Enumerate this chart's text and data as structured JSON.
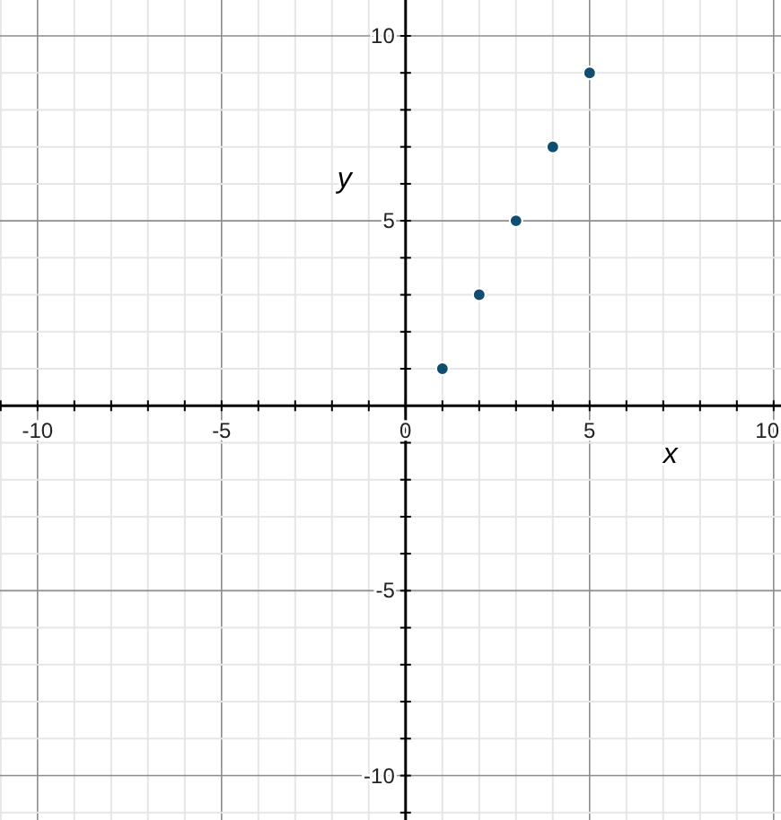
{
  "chart_data": {
    "type": "scatter",
    "xlabel": "x",
    "ylabel": "y",
    "x": [
      1,
      2,
      3,
      4,
      5
    ],
    "series": [
      {
        "color": "#0f4d71",
        "values": [
          1,
          3,
          5,
          7,
          9
        ]
      }
    ],
    "xlim": [
      -11.02,
      10.2
    ],
    "ylim": [
      -11.2,
      10.97
    ],
    "xticks": [
      {
        "value": -11,
        "label": null
      },
      -10,
      {
        "value": -9,
        "label": null
      },
      {
        "value": -8,
        "label": null
      },
      {
        "value": -7,
        "label": null
      },
      {
        "value": -6,
        "label": null
      },
      -5,
      {
        "value": -4,
        "label": null
      },
      {
        "value": -3,
        "label": null
      },
      {
        "value": -2,
        "label": null
      },
      {
        "value": -1,
        "label": null
      },
      0,
      {
        "value": 1,
        "label": null
      },
      {
        "value": 2,
        "label": null
      },
      {
        "value": 3,
        "label": null
      },
      {
        "value": 4,
        "label": null
      },
      5,
      {
        "value": 6,
        "label": null
      },
      {
        "value": 7,
        "label": null
      },
      {
        "value": 8,
        "label": null
      },
      {
        "value": 9,
        "label": null
      },
      10
    ],
    "yticks": [
      {
        "value": -11,
        "label": null
      },
      -10,
      {
        "value": -9,
        "label": null
      },
      {
        "value": -8,
        "label": null
      },
      {
        "value": -7,
        "label": null
      },
      {
        "value": -6,
        "label": null
      },
      -5,
      {
        "value": -4,
        "label": null
      },
      {
        "value": -3,
        "label": null
      },
      {
        "value": -2,
        "label": null
      },
      {
        "value": -1,
        "label": null
      },
      {
        "value": 1,
        "label": null
      },
      {
        "value": 2,
        "label": null
      },
      {
        "value": 3,
        "label": null
      },
      {
        "value": 4,
        "label": null
      },
      5,
      {
        "value": 6,
        "label": null
      },
      {
        "value": 7,
        "label": null
      },
      {
        "value": 8,
        "label": null
      },
      {
        "value": 9,
        "label": null
      },
      10
    ],
    "grid": true,
    "marker": "circle"
  }
}
